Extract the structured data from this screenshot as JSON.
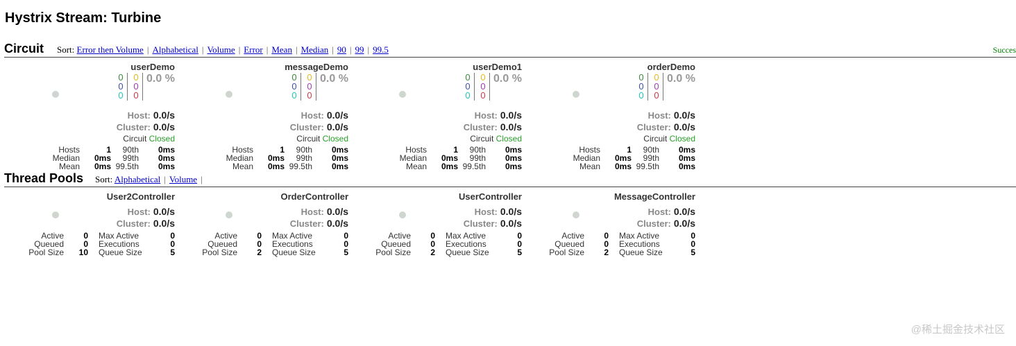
{
  "page": {
    "title": "Hystrix Stream: Turbine"
  },
  "circuit": {
    "title": "Circuit",
    "sort_prefix": "Sort:",
    "sort_options": [
      "Error then Volume",
      "Alphabetical",
      "Volume",
      "Error",
      "Mean",
      "Median",
      "90",
      "99",
      "99.5"
    ],
    "status_text": "Succes",
    "host_label": "Host:",
    "cluster_label": "Cluster:",
    "circuit_label": "Circuit",
    "stat_labels": {
      "hosts": "Hosts",
      "median": "Median",
      "mean": "Mean",
      "p90": "90th",
      "p99": "99th",
      "p995": "99.5th"
    },
    "tiles": [
      {
        "name": "userDemo",
        "counts": {
          "success": "0",
          "short_circuited": "0",
          "bad_request": "0",
          "timeout": "0",
          "rejected": "0",
          "failure": "0"
        },
        "error_pct": "0.0 %",
        "host_rate": "0.0/s",
        "cluster_rate": "0.0/s",
        "circuit_status": "Closed",
        "hosts": "1",
        "median": "0ms",
        "mean": "0ms",
        "p90": "0ms",
        "p99": "0ms",
        "p995": "0ms"
      },
      {
        "name": "messageDemo",
        "counts": {
          "success": "0",
          "short_circuited": "0",
          "bad_request": "0",
          "timeout": "0",
          "rejected": "0",
          "failure": "0"
        },
        "error_pct": "0.0 %",
        "host_rate": "0.0/s",
        "cluster_rate": "0.0/s",
        "circuit_status": "Closed",
        "hosts": "1",
        "median": "0ms",
        "mean": "0ms",
        "p90": "0ms",
        "p99": "0ms",
        "p995": "0ms"
      },
      {
        "name": "userDemo1",
        "counts": {
          "success": "0",
          "short_circuited": "0",
          "bad_request": "0",
          "timeout": "0",
          "rejected": "0",
          "failure": "0"
        },
        "error_pct": "0.0 %",
        "host_rate": "0.0/s",
        "cluster_rate": "0.0/s",
        "circuit_status": "Closed",
        "hosts": "1",
        "median": "0ms",
        "mean": "0ms",
        "p90": "0ms",
        "p99": "0ms",
        "p995": "0ms"
      },
      {
        "name": "orderDemo",
        "counts": {
          "success": "0",
          "short_circuited": "0",
          "bad_request": "0",
          "timeout": "0",
          "rejected": "0",
          "failure": "0"
        },
        "error_pct": "0.0 %",
        "host_rate": "0.0/s",
        "cluster_rate": "0.0/s",
        "circuit_status": "Closed",
        "hosts": "1",
        "median": "0ms",
        "mean": "0ms",
        "p90": "0ms",
        "p99": "0ms",
        "p995": "0ms"
      }
    ]
  },
  "thread_pools": {
    "title": "Thread Pools",
    "sort_prefix": "Sort:",
    "sort_options": [
      "Alphabetical",
      "Volume"
    ],
    "host_label": "Host:",
    "cluster_label": "Cluster:",
    "stat_labels": {
      "active": "Active",
      "queued": "Queued",
      "pool_size": "Pool Size",
      "max_active": "Max Active",
      "executions": "Executions",
      "queue_size": "Queue Size"
    },
    "tiles": [
      {
        "name": "User2Controller",
        "host_rate": "0.0/s",
        "cluster_rate": "0.0/s",
        "active": "0",
        "queued": "0",
        "pool_size": "10",
        "max_active": "0",
        "executions": "0",
        "queue_size": "5"
      },
      {
        "name": "OrderController",
        "host_rate": "0.0/s",
        "cluster_rate": "0.0/s",
        "active": "0",
        "queued": "0",
        "pool_size": "2",
        "max_active": "0",
        "executions": "0",
        "queue_size": "5"
      },
      {
        "name": "UserController",
        "host_rate": "0.0/s",
        "cluster_rate": "0.0/s",
        "active": "0",
        "queued": "0",
        "pool_size": "2",
        "max_active": "0",
        "executions": "0",
        "queue_size": "5"
      },
      {
        "name": "MessageController",
        "host_rate": "0.0/s",
        "cluster_rate": "0.0/s",
        "active": "0",
        "queued": "0",
        "pool_size": "2",
        "max_active": "0",
        "executions": "0",
        "queue_size": "5"
      }
    ]
  },
  "watermark": "@稀土掘金技术社区"
}
